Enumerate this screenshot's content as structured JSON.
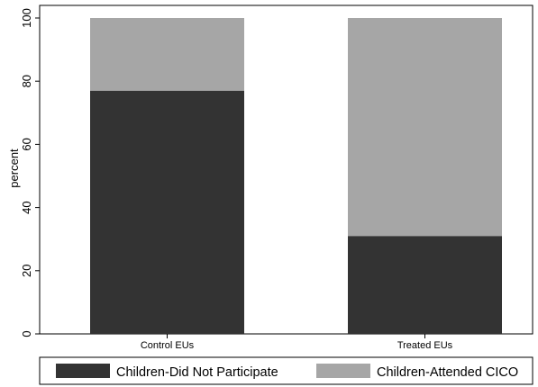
{
  "chart_data": {
    "type": "bar",
    "stacked": true,
    "categories": [
      "Control EUs",
      "Treated EUs"
    ],
    "series": [
      {
        "name": "Children-Did Not Participate",
        "values": [
          77,
          31
        ],
        "color": "#333333"
      },
      {
        "name": "Children-Attended CICO",
        "values": [
          23,
          69
        ],
        "color": "#a6a6a6"
      }
    ],
    "xlabel": "",
    "ylabel": "percent",
    "ylim": [
      0,
      100
    ],
    "yticks": [
      0,
      20,
      40,
      60,
      80,
      100
    ],
    "ytick_labels": [
      "0",
      "20",
      "40",
      "60",
      "80",
      "100"
    ],
    "grid": false,
    "legend_position": "bottom"
  }
}
